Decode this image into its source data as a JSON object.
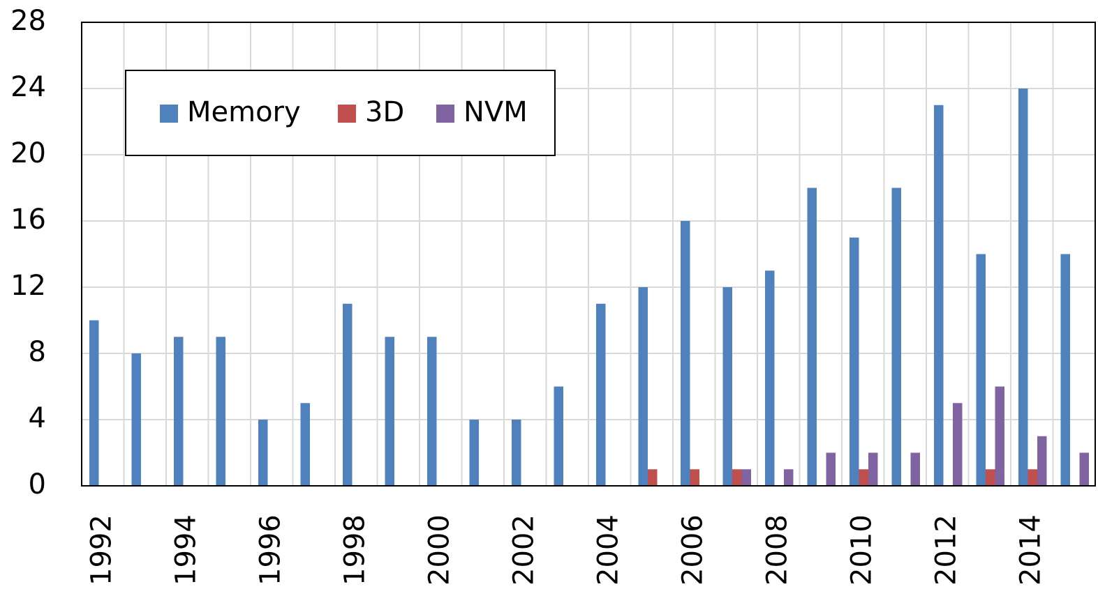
{
  "chart_data": {
    "type": "bar",
    "categories": [
      "1992",
      null,
      "1994",
      null,
      "1996",
      null,
      "1998",
      null,
      "2000",
      null,
      "2002",
      null,
      "2004",
      null,
      "2006",
      null,
      "2008",
      null,
      "2010",
      null,
      "2012",
      null,
      "2014",
      null
    ],
    "series": [
      {
        "name": "Memory",
        "color": "#4f81bd",
        "values": [
          10,
          8,
          9,
          9,
          4,
          5,
          11,
          9,
          9,
          4,
          4,
          6,
          11,
          12,
          16,
          12,
          13,
          18,
          15,
          18,
          23,
          14,
          24,
          14
        ]
      },
      {
        "name": "3D",
        "color": "#c0504d",
        "values": [
          0,
          0,
          0,
          0,
          0,
          0,
          0,
          0,
          0,
          0,
          0,
          0,
          0,
          1,
          1,
          1,
          0,
          0,
          1,
          0,
          0,
          1,
          1,
          0
        ]
      },
      {
        "name": "NVM",
        "color": "#8064a2",
        "values": [
          0,
          0,
          0,
          0,
          0,
          0,
          0,
          0,
          0,
          0,
          0,
          0,
          0,
          0,
          0,
          1,
          1,
          2,
          2,
          2,
          5,
          6,
          3,
          2
        ]
      }
    ],
    "ylim": [
      0,
      28
    ],
    "yticks": [
      0,
      4,
      8,
      12,
      16,
      20,
      24,
      28
    ],
    "grid": true,
    "legend": "top-left"
  }
}
